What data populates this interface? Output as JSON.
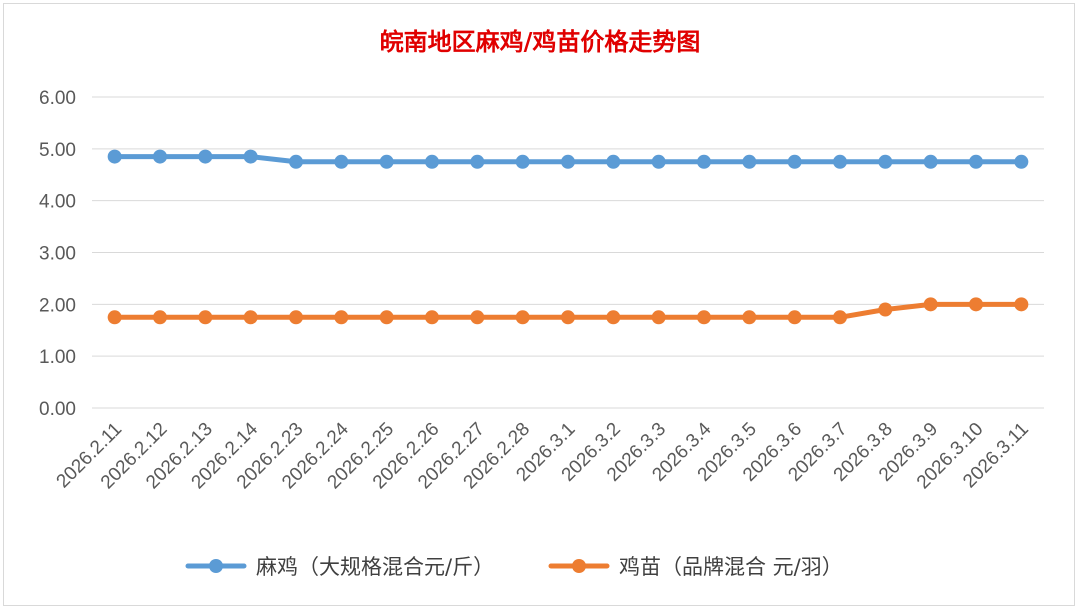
{
  "chart_data": {
    "type": "line",
    "title": "皖南地区麻鸡/鸡苗价格走势图",
    "xlabel": "",
    "ylabel": "",
    "ylim": [
      0,
      6
    ],
    "yticks": [
      "0.00",
      "1.00",
      "2.00",
      "3.00",
      "4.00",
      "5.00",
      "6.00"
    ],
    "grid": true,
    "legend_position": "bottom",
    "categories": [
      "2026.2.11",
      "2026.2.12",
      "2026.2.13",
      "2026.2.14",
      "2026.2.23",
      "2026.2.24",
      "2026.2.25",
      "2026.2.26",
      "2026.2.27",
      "2026.2.28",
      "2026.3.1",
      "2026.3.2",
      "2026.3.3",
      "2026.3.4",
      "2026.3.5",
      "2026.3.6",
      "2026.3.7",
      "2026.3.8",
      "2026.3.9",
      "2026.3.10",
      "2026.3.11"
    ],
    "series": [
      {
        "name": "麻鸡（大规格混合元/斤）",
        "color": "#5b9bd5",
        "values": [
          4.85,
          4.85,
          4.85,
          4.85,
          4.75,
          4.75,
          4.75,
          4.75,
          4.75,
          4.75,
          4.75,
          4.75,
          4.75,
          4.75,
          4.75,
          4.75,
          4.75,
          4.75,
          4.75,
          4.75,
          4.75
        ]
      },
      {
        "name": "鸡苗（品牌混合 元/羽）",
        "color": "#ed7d31",
        "values": [
          1.75,
          1.75,
          1.75,
          1.75,
          1.75,
          1.75,
          1.75,
          1.75,
          1.75,
          1.75,
          1.75,
          1.75,
          1.75,
          1.75,
          1.75,
          1.75,
          1.75,
          1.9,
          2.0,
          2.0,
          2.0
        ]
      }
    ]
  }
}
